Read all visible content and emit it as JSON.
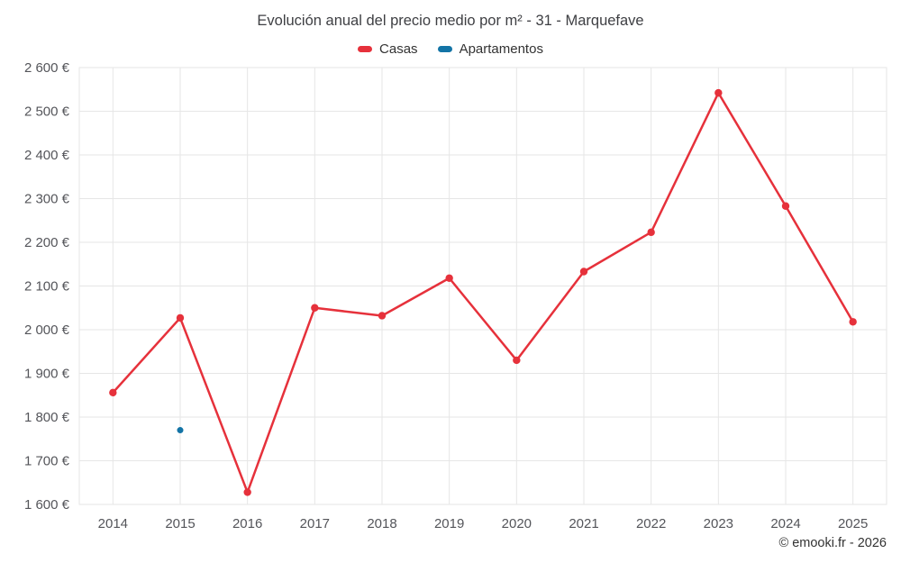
{
  "credits": "© emooki.fr - 2026",
  "chart_data": {
    "type": "line",
    "title": "Evolución anual del precio medio por m² - 31 - Marquefave",
    "categories": [
      "2014",
      "2015",
      "2016",
      "2017",
      "2018",
      "2019",
      "2020",
      "2021",
      "2022",
      "2023",
      "2024",
      "2025"
    ],
    "series": [
      {
        "name": "Casas",
        "color": "#e6313b",
        "values": [
          1856,
          2027,
          1628,
          2050,
          2032,
          2118,
          1930,
          2133,
          2223,
          2542,
          2283,
          2018
        ]
      },
      {
        "name": "Apartamentos",
        "color": "#1374a6",
        "values": [
          null,
          1770,
          null,
          null,
          null,
          null,
          null,
          null,
          null,
          null,
          null,
          null
        ]
      }
    ],
    "xlabel": "",
    "ylabel": "",
    "ylim": [
      1600,
      2600
    ],
    "ytick_step": 100,
    "ylabel_suffix": " €",
    "grid": true,
    "gridline_color": "#e6e6e6",
    "legend_position": "top"
  }
}
